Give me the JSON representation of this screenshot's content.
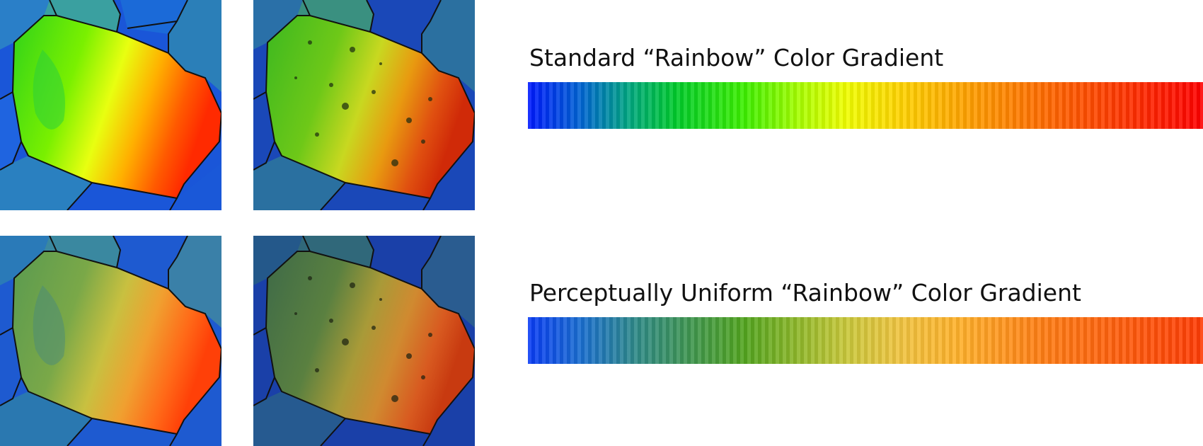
{
  "gradients": {
    "standard": {
      "title": "Standard “Rainbow” Color Gradient",
      "colors": [
        "#0019ff",
        "#00a880",
        "#3cf000",
        "#f0ff00",
        "#ff9c00",
        "#ff0000"
      ]
    },
    "uniform": {
      "title": "Perceptually Uniform “Rainbow” Color Gradient",
      "colors": [
        "#0a3cf5",
        "#2f8a88",
        "#52a51f",
        "#c8c83a",
        "#ffb02a",
        "#ff3c05"
      ]
    }
  },
  "panels": [
    {
      "id": "grain-map-standard",
      "style": "standard-rainbow"
    },
    {
      "id": "grain-image-standard",
      "style": "standard-rainbow-textured"
    },
    {
      "id": "grain-map-uniform",
      "style": "uniform-rainbow"
    },
    {
      "id": "grain-image-uniform",
      "style": "uniform-rainbow-textured"
    }
  ]
}
